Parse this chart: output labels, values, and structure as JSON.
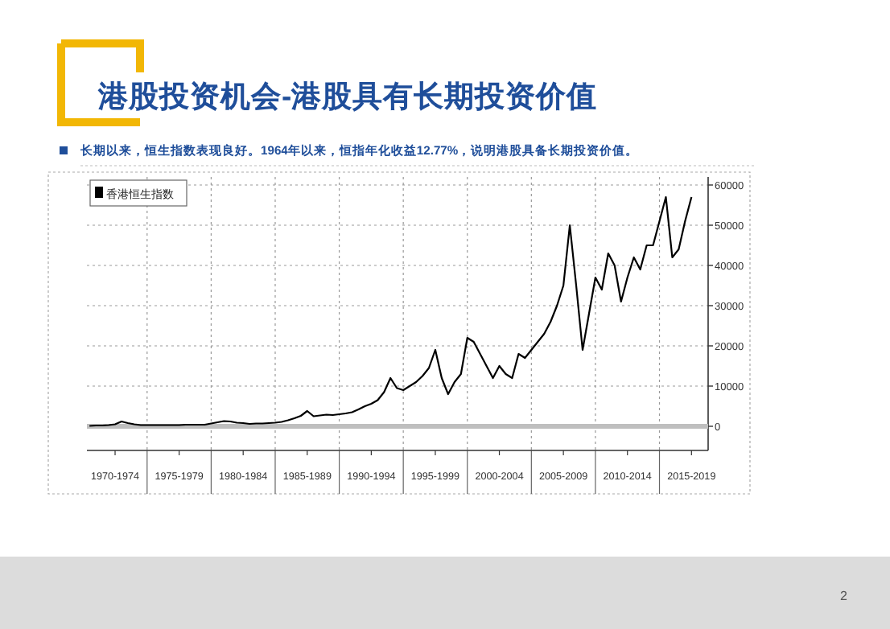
{
  "chart_data": {
    "type": "line",
    "title": "港股投资机会-港股具有长期投资价值",
    "subtitle": "长期以来，恒生指数表现良好。1964年以来，恒指年化收益12.77%，说明港股具备长期投资价值。",
    "annotations": [
      "2"
    ],
    "categories": [
      null,
      null,
      null,
      null,
      "1970-1974",
      null,
      null,
      null,
      null,
      null,
      null,
      null,
      null,
      null,
      "1975-1979",
      null,
      null,
      null,
      null,
      null,
      null,
      null,
      null,
      null,
      "1980-1984",
      null,
      null,
      null,
      null,
      null,
      null,
      null,
      null,
      null,
      "1985-1989",
      null,
      null,
      null,
      null,
      null,
      null,
      null,
      null,
      null,
      "1990-1994",
      null,
      null,
      null,
      null,
      null,
      null,
      null,
      null,
      null,
      "1995-1999",
      null,
      null,
      null,
      null,
      null,
      null,
      null,
      null,
      null,
      "2000-2004",
      null,
      null,
      null,
      null,
      null,
      null,
      null,
      null,
      null,
      "2005-2009",
      null,
      null,
      null,
      null,
      null,
      null,
      null,
      null,
      null,
      "2010-2014",
      null,
      null,
      null,
      null,
      null,
      null,
      null,
      null,
      null,
      "2015-2019"
    ],
    "series": [
      {
        "name": "香港恒生指数",
        "color": "#000000",
        "values": [
          100,
          200,
          200,
          300,
          500,
          1200,
          800,
          500,
          300,
          300,
          300,
          300,
          300,
          300,
          300,
          400,
          400,
          400,
          400,
          700,
          1000,
          1300,
          1200,
          900,
          800,
          600,
          700,
          700,
          800,
          900,
          1100,
          1500,
          2000,
          2600,
          3800,
          2500,
          2700,
          2900,
          2800,
          3000,
          3200,
          3500,
          4200,
          5000,
          5600,
          6500,
          8500,
          12000,
          9500,
          9000,
          10000,
          11000,
          12500,
          14500,
          19000,
          12000,
          8000,
          11000,
          13000,
          22000,
          21000,
          18000,
          15000,
          12000,
          15000,
          13000,
          12000,
          18000,
          17000,
          19000,
          21000,
          23000,
          26000,
          30000,
          35000,
          50000,
          35000,
          19000,
          28000,
          37000,
          34000,
          43000,
          40000,
          31000,
          37000,
          42000,
          39000,
          45000,
          45000,
          51000,
          57000,
          42000,
          44000,
          51000,
          57000
        ]
      }
    ],
    "ylim": [
      -6000,
      62000
    ],
    "yticks": [
      0,
      10000,
      20000,
      30000,
      40000,
      50000,
      60000
    ],
    "ref_lines": [
      {
        "axis": "y",
        "value": 0,
        "color": "#bfbfbf"
      }
    ],
    "grid": true,
    "legend": "top left",
    "marker": "none",
    "line_style": "solid"
  }
}
